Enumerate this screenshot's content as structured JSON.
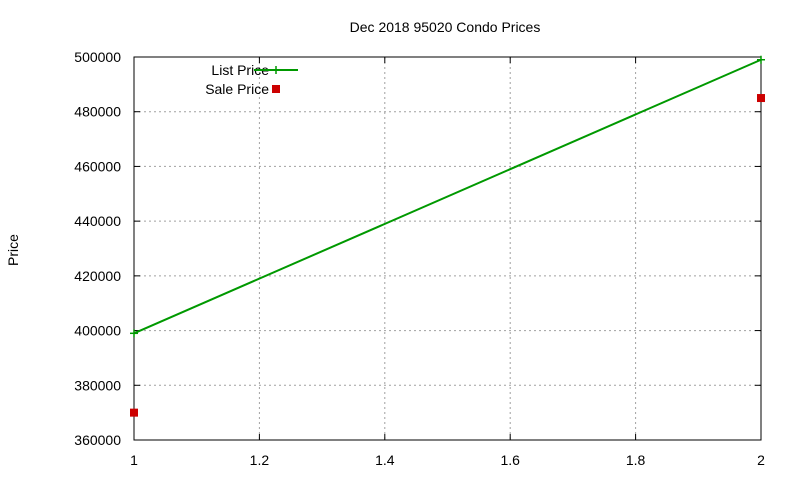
{
  "chart_data": {
    "type": "line",
    "title": "Dec 2018 95020 Condo Prices",
    "xlabel": "",
    "ylabel": "Price",
    "xlim": [
      1,
      2
    ],
    "ylim": [
      360000,
      500000
    ],
    "x_ticks": [
      1,
      1.2,
      1.4,
      1.6,
      1.8,
      2
    ],
    "y_ticks": [
      360000,
      380000,
      400000,
      420000,
      440000,
      460000,
      480000,
      500000
    ],
    "grid": true,
    "legend_position": "top-left",
    "series": [
      {
        "name": "List Price",
        "style": "linespoints",
        "marker": "plus",
        "color": "#009900",
        "x": [
          1,
          2
        ],
        "y": [
          399000,
          499000
        ]
      },
      {
        "name": "Sale Price",
        "style": "points",
        "marker": "square",
        "color": "#cc0000",
        "x": [
          1,
          2
        ],
        "y": [
          370000,
          485000
        ]
      }
    ]
  }
}
